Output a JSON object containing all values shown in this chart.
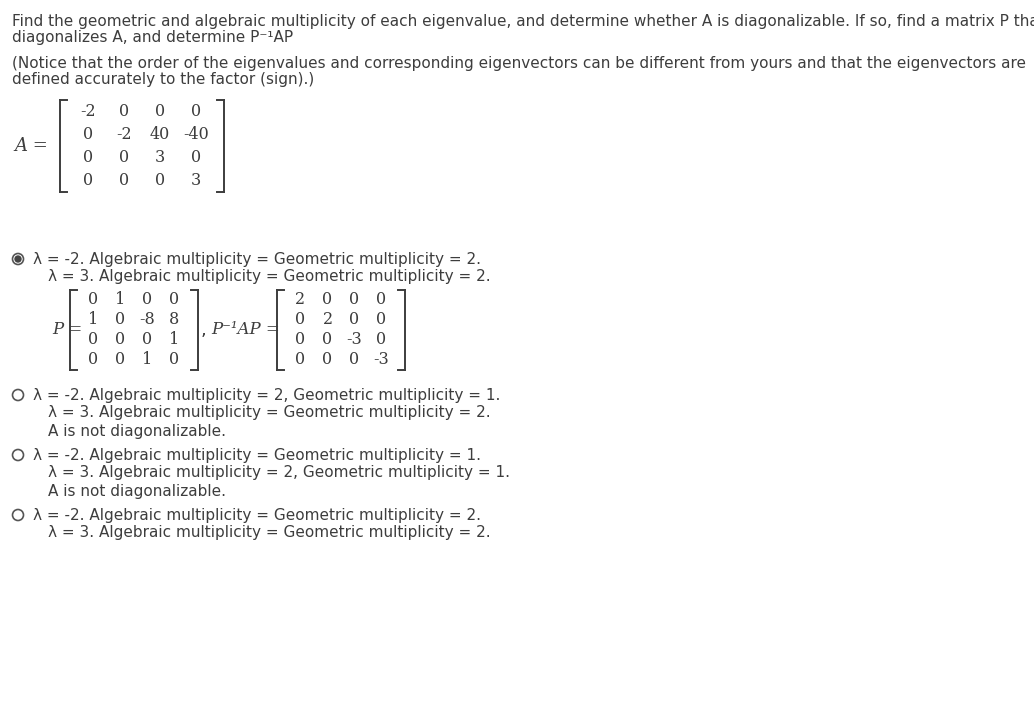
{
  "bg_color": "#ffffff",
  "text_color": "#3d3d3d",
  "title_line1": "Find the geometric and algebraic multiplicity of each eigenvalue, and determine whether A is diagonalizable. If so, find a matrix P that",
  "title_line2": "diagonalizes A, and determine P⁻¹AP",
  "notice_line1": "(Notice that the order of the eigenvalues and corresponding eigenvectors can be different from yours and that the eigenvectors are",
  "notice_line2": "defined accurately to the factor (sign).)",
  "A_matrix": [
    [
      -2,
      0,
      0,
      0
    ],
    [
      0,
      -2,
      40,
      -40
    ],
    [
      0,
      0,
      3,
      0
    ],
    [
      0,
      0,
      0,
      3
    ]
  ],
  "P_matrix": [
    [
      0,
      1,
      0,
      0
    ],
    [
      1,
      0,
      -8,
      8
    ],
    [
      0,
      0,
      0,
      1
    ],
    [
      0,
      0,
      1,
      0
    ]
  ],
  "PINVAP_matrix": [
    [
      2,
      0,
      0,
      0
    ],
    [
      0,
      2,
      0,
      0
    ],
    [
      0,
      0,
      -3,
      0
    ],
    [
      0,
      0,
      0,
      -3
    ]
  ],
  "option1_line1": "λ = -2. Algebraic multiplicity = Geometric multiplicity = 2.",
  "option1_line2": "λ = 3. Algebraic multiplicity = Geometric multiplicity = 2.",
  "option2_line1": "λ = -2. Algebraic multiplicity = 2, Geometric multiplicity = 1.",
  "option2_line2": "λ = 3. Algebraic multiplicity = Geometric multiplicity = 2.",
  "option2_extra": "A is not diagonalizable.",
  "option3_line1": "λ = -2. Algebraic multiplicity = Geometric multiplicity = 1.",
  "option3_line2": "λ = 3. Algebraic multiplicity = 2, Geometric multiplicity = 1.",
  "option3_extra": "A is not diagonalizable.",
  "option4_line1": "λ = -2. Algebraic multiplicity = Geometric multiplicity = 2.",
  "option4_line2": "λ = 3. Algebraic multiplicity = Geometric multiplicity = 2.",
  "fontsize_body": 11,
  "fontsize_matrix": 11.5
}
